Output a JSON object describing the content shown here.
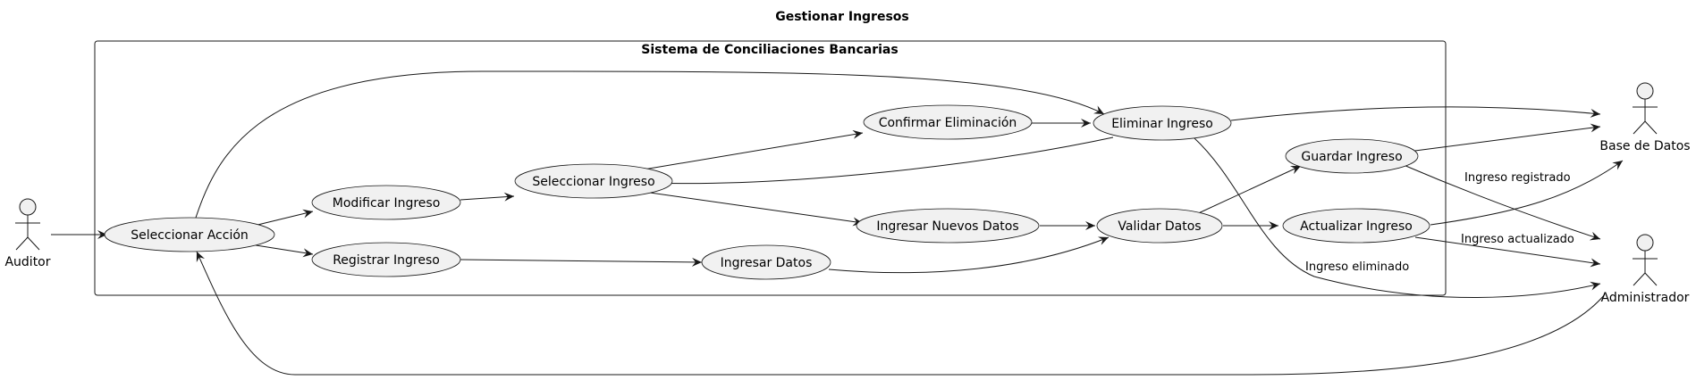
{
  "diagram": {
    "title": "Gestionar Ingresos",
    "system_name": "Sistema de Conciliaciones Bancarias",
    "actors": {
      "auditor": "Auditor",
      "base_datos": "Base de Datos",
      "administrador": "Administrador"
    },
    "use_cases": {
      "seleccionar_accion": "Seleccionar Acción",
      "modificar_ingreso": "Modificar Ingreso",
      "registrar_ingreso": "Registrar Ingreso",
      "seleccionar_ingreso": "Seleccionar Ingreso",
      "ingresar_datos": "Ingresar Datos",
      "confirmar_eliminacion": "Confirmar Eliminación",
      "ingresar_nuevos_datos": "Ingresar Nuevos Datos",
      "eliminar_ingreso": "Eliminar Ingreso",
      "validar_datos": "Validar Datos",
      "guardar_ingreso": "Guardar Ingreso",
      "actualizar_ingreso": "Actualizar Ingreso"
    },
    "edge_labels": {
      "registrado": "Ingreso registrado",
      "actualizado": "Ingreso actualizado",
      "eliminado": "Ingreso eliminado"
    }
  }
}
